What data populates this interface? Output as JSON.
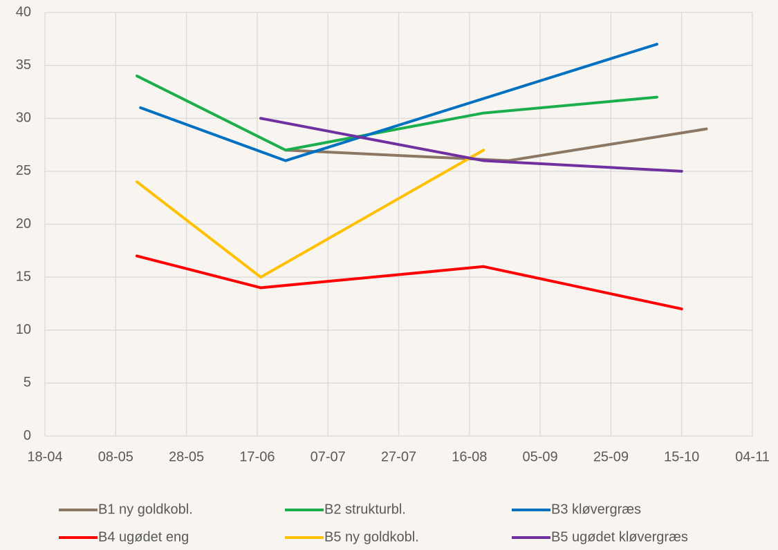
{
  "chart_data": {
    "type": "line",
    "xlim": [
      "18-04",
      "04-11"
    ],
    "xticks": [
      "18-04",
      "08-05",
      "28-05",
      "17-06",
      "07-07",
      "27-07",
      "16-08",
      "05-09",
      "25-09",
      "15-10",
      "04-11"
    ],
    "ylim": [
      0,
      40
    ],
    "yticks": [
      0,
      5,
      10,
      15,
      20,
      25,
      30,
      35,
      40
    ],
    "grid": true,
    "legend": "bottom",
    "series": [
      {
        "name": "B1 ny goldkobl.",
        "color": "#8b7763",
        "x": [
          "25-06",
          "27-08",
          "22-10"
        ],
        "values": [
          27,
          26,
          29
        ]
      },
      {
        "name": "B2 strukturbl.",
        "color": "#1aae4c",
        "x": [
          "14-05",
          "25-06",
          "20-08",
          "08-10"
        ],
        "values": [
          34,
          27,
          30.5,
          32
        ]
      },
      {
        "name": "B3 kløvergræs",
        "color": "#0070c0",
        "x": [
          "15-05",
          "25-06",
          "08-10"
        ],
        "values": [
          31,
          26,
          37
        ]
      },
      {
        "name": "B4 ugødet eng",
        "color": "#ff0000",
        "x": [
          "14-05",
          "18-06",
          "20-08",
          "15-10"
        ],
        "values": [
          17,
          14,
          16,
          12
        ]
      },
      {
        "name": "B5 ny goldkobl.",
        "color": "#ffc000",
        "x": [
          "14-05",
          "18-06",
          "20-08"
        ],
        "values": [
          24,
          15,
          27
        ]
      },
      {
        "name": "B5 ugødet kløvergræs",
        "color": "#7030a0",
        "x": [
          "18-06",
          "20-08",
          "15-10"
        ],
        "values": [
          30,
          26,
          25
        ]
      }
    ]
  }
}
